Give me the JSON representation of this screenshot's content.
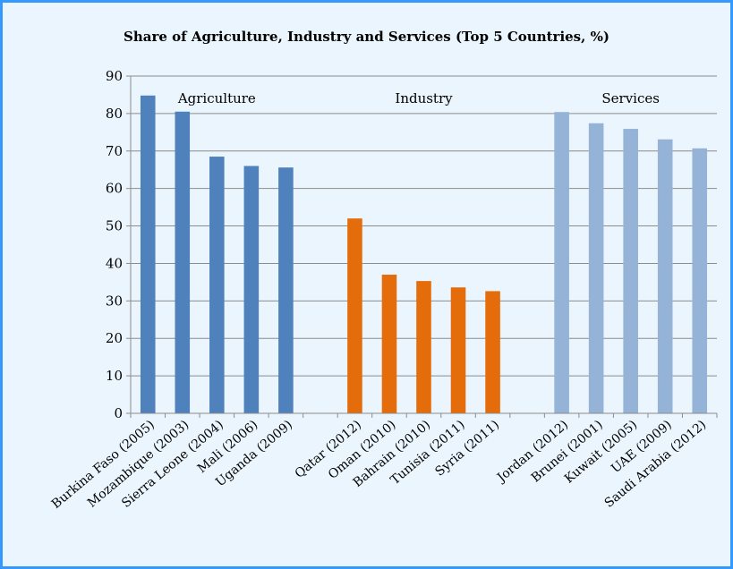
{
  "chart_data": {
    "type": "bar",
    "title": "Share of Agriculture, Industry and Services (Top 5 Countries, %)",
    "xlabel": "",
    "ylabel": "",
    "ylim": [
      0,
      90
    ],
    "yticks": [
      0,
      10,
      20,
      30,
      40,
      50,
      60,
      70,
      80,
      90
    ],
    "grid": true,
    "legend": "none",
    "groups": [
      {
        "name": "Agriculture",
        "color": "#4f81bd",
        "categories": [
          "Burkina Faso (2005)",
          "Mozambique (2003)",
          "Sierra Leone (2004)",
          "Mali (2006)",
          "Uganda (2009)"
        ],
        "values": [
          84.8,
          80.5,
          68.5,
          66.0,
          65.6
        ]
      },
      {
        "name": "Industry",
        "color": "#e46c0a",
        "categories": [
          "Qatar (2012)",
          "Oman (2010)",
          "Bahrain (2010)",
          "Tunisia (2011)",
          "Syria (2011)"
        ],
        "values": [
          52.0,
          37.0,
          35.3,
          33.6,
          32.6
        ]
      },
      {
        "name": "Services",
        "color": "#95b3d7",
        "categories": [
          "Jordan (2012)",
          "Brunei (2001)",
          "Kuwait (2005)",
          "UAE (2009)",
          "Saudi Arabia (2012)"
        ],
        "values": [
          80.4,
          77.4,
          75.9,
          73.1,
          70.7
        ]
      }
    ]
  }
}
